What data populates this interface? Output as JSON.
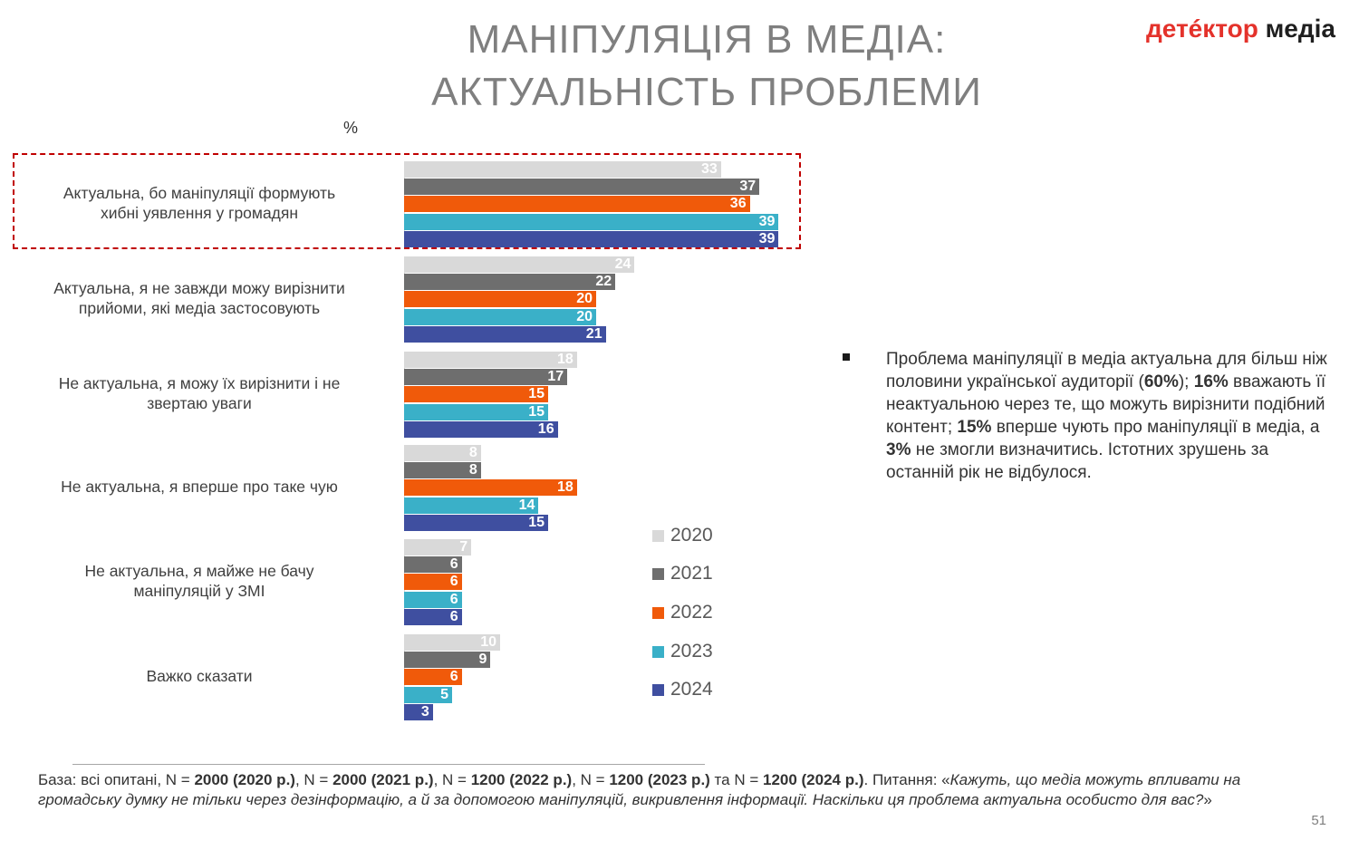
{
  "header": {
    "title_line1": "МАНІПУЛЯЦІЯ В МЕДІА:",
    "title_line2": "АКТУАЛЬНІСТЬ ПРОБЛЕМИ",
    "logo_part1": "детéктор",
    "logo_part2": "медіа"
  },
  "chart_data": {
    "type": "bar",
    "orientation": "horizontal",
    "unit_label": "%",
    "categories": [
      [
        "Актуальна, бо маніпуляції формують",
        "хибні уявлення у громадян"
      ],
      [
        "Актуальна, я не завжди можу вирізнити",
        "прийоми, які медіа застосовують"
      ],
      [
        "Не актуальна, я можу їх вирізнити і не",
        "звертаю уваги"
      ],
      [
        "Не актуальна, я вперше про таке чую"
      ],
      [
        "Не актуальна, я майже не бачу",
        "маніпуляцій у ЗМІ"
      ],
      [
        "Важко сказати"
      ]
    ],
    "series": [
      {
        "name": "2020",
        "color": "#d9d9d9",
        "values": [
          33,
          24,
          18,
          8,
          7,
          10
        ]
      },
      {
        "name": "2021",
        "color": "#6e6e6e",
        "values": [
          37,
          22,
          17,
          8,
          6,
          9
        ]
      },
      {
        "name": "2022",
        "color": "#f05a0a",
        "values": [
          36,
          20,
          15,
          18,
          6,
          6
        ]
      },
      {
        "name": "2023",
        "color": "#3ab0c8",
        "values": [
          39,
          20,
          15,
          14,
          6,
          5
        ]
      },
      {
        "name": "2024",
        "color": "#3f4fa0",
        "values": [
          39,
          21,
          16,
          15,
          6,
          3
        ]
      }
    ],
    "highlighted_category_index": 0,
    "legend_position": "right"
  },
  "summary": {
    "segments": [
      {
        "text": "Проблема маніпуляції в медіа актуальна для більш ніж половини української аудиторії (",
        "bold": false
      },
      {
        "text": "60%",
        "bold": true
      },
      {
        "text": "); ",
        "bold": false
      },
      {
        "text": "16%",
        "bold": true
      },
      {
        "text": " вважають її неактуальною через те, що можуть вирізнити подібний контент; ",
        "bold": false
      },
      {
        "text": "15%",
        "bold": true
      },
      {
        "text": " вперше чують про маніпуляції в медіа, а ",
        "bold": false
      },
      {
        "text": "3%",
        "bold": true
      },
      {
        "text": " не змогли визначитись. Істотних зрушень за останній рік не відбулося.",
        "bold": false
      }
    ]
  },
  "footnote": {
    "segments": [
      {
        "text": "База: всі опитані, N = ",
        "style": "normal"
      },
      {
        "text": "2000 (2020 р.)",
        "style": "bold"
      },
      {
        "text": ", N = ",
        "style": "normal"
      },
      {
        "text": "2000 (2021 р.)",
        "style": "bold"
      },
      {
        "text": ", N = ",
        "style": "normal"
      },
      {
        "text": "1200 (2022 р.)",
        "style": "bold"
      },
      {
        "text": ", N = ",
        "style": "normal"
      },
      {
        "text": "1200 (2023 р.)",
        "style": "bold"
      },
      {
        "text": " та N = ",
        "style": "normal"
      },
      {
        "text": "1200 (2024 р.)",
        "style": "bold"
      },
      {
        "text": ". Питання: «",
        "style": "normal"
      },
      {
        "text": "Кажуть, що медіа можуть впливати на громадську думку не тільки через дезінформацію, а й за допомогою маніпуляцій, викривлення інформації. Наскільки ця проблема актуальна особисто для вас?",
        "style": "italic"
      },
      {
        "text": "»",
        "style": "normal"
      }
    ]
  },
  "page_number": "51"
}
